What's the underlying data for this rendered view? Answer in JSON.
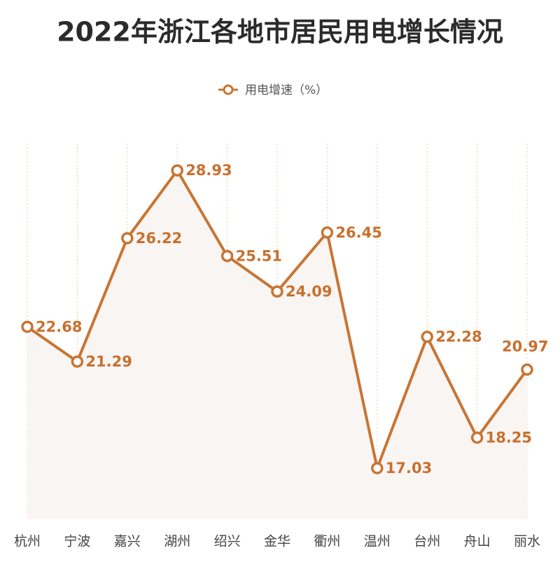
{
  "chart_data": {
    "type": "line",
    "title": "2022年浙江各地市居民用电增长情况",
    "categories": [
      "杭州",
      "宁波",
      "嘉兴",
      "湖州",
      "绍兴",
      "金华",
      "衢州",
      "温州",
      "台州",
      "舟山",
      "丽水"
    ],
    "series": [
      {
        "name": "用电增速（%）",
        "color": "#c87533",
        "values": [
          22.68,
          21.29,
          26.22,
          28.93,
          25.51,
          24.09,
          26.45,
          17.03,
          22.28,
          18.25,
          20.97
        ]
      }
    ],
    "ylim": [
      15,
      30
    ]
  }
}
